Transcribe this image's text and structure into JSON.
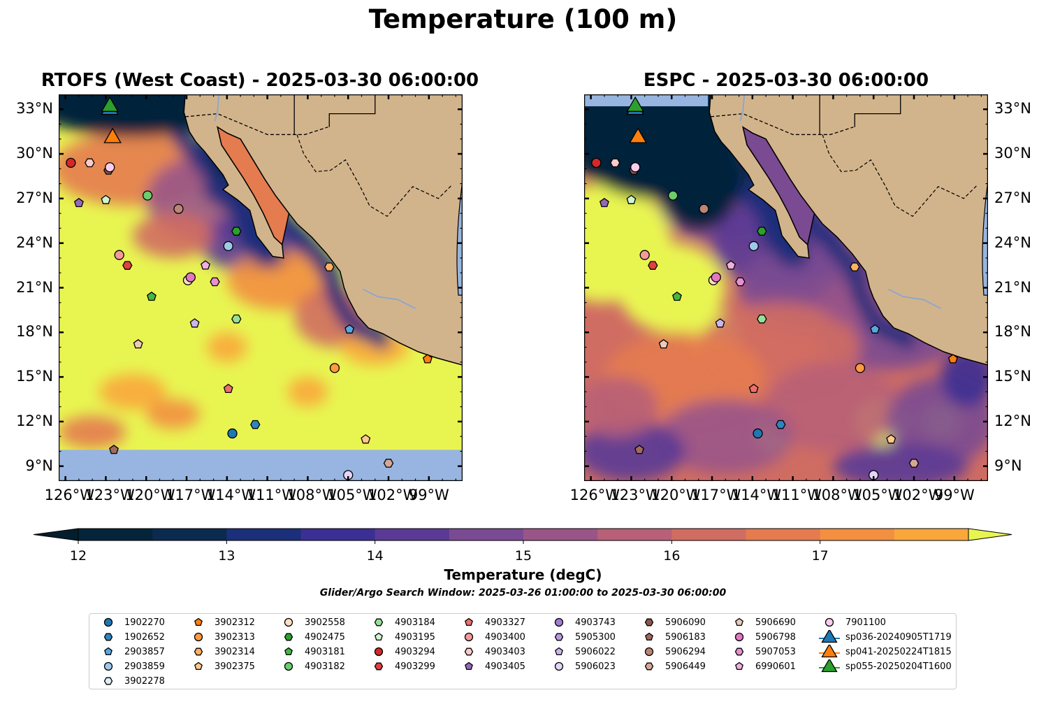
{
  "title": "Temperature (100 m)",
  "panels": [
    {
      "title": "RTOFS (West Coast) - 2025-03-30 06:00:00",
      "model": "rtofs"
    },
    {
      "title": "ESPC - 2025-03-30 06:00:00",
      "model": "espc"
    }
  ],
  "lon_ticks": [
    "126°W",
    "123°W",
    "120°W",
    "117°W",
    "114°W",
    "111°W",
    "108°W",
    "105°W",
    "102°W",
    "99°W"
  ],
  "lat_ticks": [
    "33°N",
    "30°N",
    "27°N",
    "24°N",
    "21°N",
    "18°N",
    "15°N",
    "12°N",
    "9°N"
  ],
  "colorbar": {
    "label": "Temperature (degC)",
    "ticks": [
      "12",
      "13",
      "14",
      "15",
      "16",
      "17"
    ],
    "colors": [
      "#04243a",
      "#0b2a4f",
      "#1b2f7a",
      "#3b2f93",
      "#5a3a96",
      "#7a4a92",
      "#9a5588",
      "#b86077",
      "#d06d63",
      "#e47c4f",
      "#f28f40",
      "#f9a73a",
      "#f8c33c"
    ],
    "under_color": "#031e2e",
    "over_color": "#e8f551"
  },
  "colors": {
    "land": "#d2b48c",
    "nodata": "#97b5e0",
    "warm": "#e8f551"
  },
  "search_window": "Glider/Argo Search Window: 2025-03-26 01:00:00 to 2025-03-30 06:00:00",
  "legend": [
    {
      "id": "1902270",
      "marker": "circle",
      "color": "#1f77b4"
    },
    {
      "id": "1902652",
      "marker": "hexagon",
      "color": "#2e86c1"
    },
    {
      "id": "2903857",
      "marker": "pentagon",
      "color": "#5aa6e0"
    },
    {
      "id": "2903859",
      "marker": "circle",
      "color": "#9ec9ec"
    },
    {
      "id": "3902278",
      "marker": "hexagon",
      "color": "#deeef9"
    },
    {
      "id": "3902312",
      "marker": "pentagon",
      "color": "#ff7f0e"
    },
    {
      "id": "3902313",
      "marker": "circle",
      "color": "#ff9a3f"
    },
    {
      "id": "3902314",
      "marker": "hexagon",
      "color": "#ffb063"
    },
    {
      "id": "3902375",
      "marker": "pentagon",
      "color": "#ffc98c"
    },
    {
      "id": "3902558",
      "marker": "circle",
      "color": "#ffe1c2"
    },
    {
      "id": "4902475",
      "marker": "hexagon",
      "color": "#2ca02c"
    },
    {
      "id": "4903181",
      "marker": "pentagon",
      "color": "#45b745"
    },
    {
      "id": "4903182",
      "marker": "circle",
      "color": "#6bcd6b"
    },
    {
      "id": "4903184",
      "marker": "hexagon",
      "color": "#98e098"
    },
    {
      "id": "4903195",
      "marker": "pentagon",
      "color": "#cff5cf"
    },
    {
      "id": "4903294",
      "marker": "circle",
      "color": "#d62728"
    },
    {
      "id": "4903299",
      "marker": "hexagon",
      "color": "#e04040"
    },
    {
      "id": "4903327",
      "marker": "pentagon",
      "color": "#ef6e6e"
    },
    {
      "id": "4903400",
      "marker": "circle",
      "color": "#f59a9a"
    },
    {
      "id": "4903403",
      "marker": "hexagon",
      "color": "#fbcaca"
    },
    {
      "id": "4903405",
      "marker": "pentagon",
      "color": "#9467bd"
    },
    {
      "id": "4903743",
      "marker": "circle",
      "color": "#a17ed0"
    },
    {
      "id": "5905300",
      "marker": "hexagon",
      "color": "#b89ae0"
    },
    {
      "id": "5906022",
      "marker": "pentagon",
      "color": "#ccb5ec"
    },
    {
      "id": "5906023",
      "marker": "circle",
      "color": "#e3d5f7"
    },
    {
      "id": "5906090",
      "marker": "hexagon",
      "color": "#8c564b"
    },
    {
      "id": "5906183",
      "marker": "pentagon",
      "color": "#a06a5e"
    },
    {
      "id": "5906294",
      "marker": "circle",
      "color": "#bb8577"
    },
    {
      "id": "5906449",
      "marker": "hexagon",
      "color": "#d5a797"
    },
    {
      "id": "5906690",
      "marker": "pentagon",
      "color": "#ecc9bb"
    },
    {
      "id": "5906798",
      "marker": "circle",
      "color": "#e377c2"
    },
    {
      "id": "5907053",
      "marker": "hexagon",
      "color": "#ea8ed0"
    },
    {
      "id": "6990601",
      "marker": "pentagon",
      "color": "#f3aee0"
    },
    {
      "id": "7901100",
      "marker": "circle",
      "color": "#f9cdee"
    },
    {
      "id": "sp036-20240905T1719",
      "marker": "triangle",
      "color": "#1f77b4"
    },
    {
      "id": "sp041-20250224T1815",
      "marker": "triangle",
      "color": "#ff7f0e"
    },
    {
      "id": "sp055-20250204T1600",
      "marker": "triangle",
      "color": "#2ca02c"
    }
  ],
  "floats": [
    {
      "id": "4903294",
      "lon": -125.6,
      "lat": 29.4
    },
    {
      "id": "4903403",
      "lon": -124.2,
      "lat": 29.4
    },
    {
      "id": "5906090",
      "lon": -122.8,
      "lat": 28.9
    },
    {
      "id": "7901100",
      "lon": -122.7,
      "lat": 29.1
    },
    {
      "id": "4903405",
      "lon": -125.0,
      "lat": 26.7
    },
    {
      "id": "4903195",
      "lon": -123.0,
      "lat": 26.9
    },
    {
      "id": "4903182",
      "lon": -119.9,
      "lat": 27.2
    },
    {
      "id": "5906294",
      "lon": -117.6,
      "lat": 26.3
    },
    {
      "id": "4902475",
      "lon": -113.3,
      "lat": 24.8
    },
    {
      "id": "2903859",
      "lon": -113.9,
      "lat": 23.8
    },
    {
      "id": "4903400",
      "lon": -122.0,
      "lat": 23.2
    },
    {
      "id": "4903299",
      "lon": -121.4,
      "lat": 22.5
    },
    {
      "id": "6990601",
      "lon": -115.6,
      "lat": 22.5
    },
    {
      "id": "3902314",
      "lon": -106.4,
      "lat": 22.4
    },
    {
      "id": "3902558",
      "lon": -116.9,
      "lat": 21.5
    },
    {
      "id": "5906798",
      "lon": -116.7,
      "lat": 21.7
    },
    {
      "id": "5907053",
      "lon": -114.9,
      "lat": 21.4
    },
    {
      "id": "4903181",
      "lon": -119.6,
      "lat": 20.4
    },
    {
      "id": "4903184",
      "lon": -113.3,
      "lat": 18.9
    },
    {
      "id": "5906022",
      "lon": -116.4,
      "lat": 18.6
    },
    {
      "id": "2903857",
      "lon": -104.9,
      "lat": 18.2
    },
    {
      "id": "5906690",
      "lon": -120.6,
      "lat": 17.2
    },
    {
      "id": "3902312",
      "lon": -99.1,
      "lat": 16.2
    },
    {
      "id": "3902313",
      "lon": -106.0,
      "lat": 15.6
    },
    {
      "id": "4903327",
      "lon": -113.9,
      "lat": 14.2
    },
    {
      "id": "1902270",
      "lon": -113.6,
      "lat": 11.2
    },
    {
      "id": "1902652",
      "lon": -111.9,
      "lat": 11.8
    },
    {
      "id": "3902375",
      "lon": -103.7,
      "lat": 10.8
    },
    {
      "id": "5906183",
      "lon": -122.4,
      "lat": 10.1
    },
    {
      "id": "5906449",
      "lon": -102.0,
      "lat": 9.2
    },
    {
      "id": "5906023",
      "lon": -105.0,
      "lat": 8.4
    }
  ],
  "gliders": [
    {
      "id": "sp036-20240905T1719",
      "lon": -122.7,
      "lat": 33.1
    },
    {
      "id": "sp041-20250224T1815",
      "lon": -122.5,
      "lat": 31.2
    },
    {
      "id": "sp055-20250204T1600",
      "lon": -122.7,
      "lat": 33.3
    }
  ]
}
